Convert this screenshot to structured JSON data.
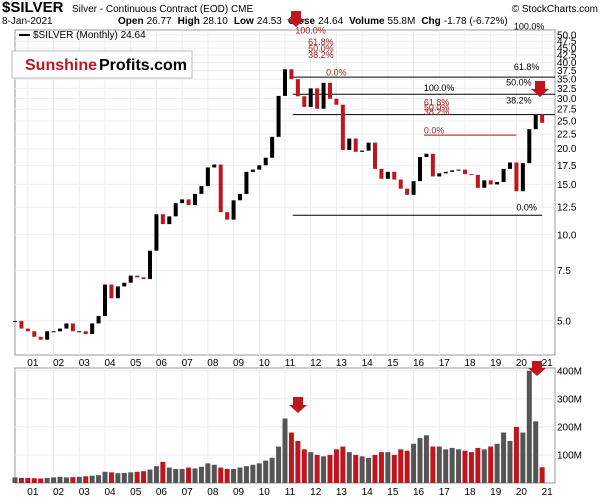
{
  "chart_data": [
    {
      "type": "candlestick",
      "title": "$SILVER",
      "subtitle": "Silver - Continuous Contract (EOD) CME",
      "source": "© StockCharts.com",
      "date": "8-Jan-2021",
      "quote": [
        {
          "label": "Open",
          "value": "26.77"
        },
        {
          "label": "High",
          "value": "28.10"
        },
        {
          "label": "Low",
          "value": "24.53"
        },
        {
          "label": "Close",
          "value": "24.64"
        },
        {
          "label": "Volume",
          "value": "55.8M"
        },
        {
          "label": "Chg",
          "value": "-1.78 (-6.72%)"
        }
      ],
      "legend": "$SILVER (Monthly) 24.64",
      "logo": [
        "Sunshine",
        "Profits.com"
      ],
      "log_scale": true,
      "grid": true,
      "up_color": "#000000",
      "down_color": "#c0141e",
      "x": [
        2000.5,
        2000.75,
        2001,
        2001.25,
        2001.5,
        2001.75,
        2002,
        2002.25,
        2002.5,
        2002.75,
        2003,
        2003.25,
        2003.5,
        2003.75,
        2004,
        2004.25,
        2004.5,
        2004.75,
        2005,
        2005.25,
        2005.5,
        2005.75,
        2006,
        2006.25,
        2006.5,
        2006.75,
        2007,
        2007.25,
        2007.5,
        2007.75,
        2008,
        2008.25,
        2008.5,
        2008.75,
        2009,
        2009.25,
        2009.5,
        2009.75,
        2010,
        2010.25,
        2010.5,
        2010.75,
        2011,
        2011.25,
        2011.5,
        2011.75,
        2012,
        2012.25,
        2012.5,
        2012.75,
        2013,
        2013.25,
        2013.5,
        2013.75,
        2014,
        2014.25,
        2014.5,
        2014.75,
        2015,
        2015.25,
        2015.5,
        2015.75,
        2016,
        2016.25,
        2016.5,
        2016.75,
        2017,
        2017.25,
        2017.5,
        2017.75,
        2018,
        2018.25,
        2018.5,
        2018.75,
        2019,
        2019.25,
        2019.5,
        2019.75,
        2020,
        2020.25,
        2020.5,
        2020.75,
        2021
      ],
      "values": [
        5.0,
        4.7,
        4.6,
        4.4,
        4.3,
        4.6,
        4.6,
        4.7,
        4.9,
        4.6,
        4.6,
        4.5,
        4.9,
        5.2,
        6.7,
        6.0,
        6.6,
        6.8,
        7.2,
        7.1,
        7.0,
        8.8,
        11.8,
        10.9,
        11.6,
        12.9,
        13.3,
        12.7,
        13.9,
        14.8,
        17.2,
        17.6,
        12.0,
        11.3,
        13.2,
        13.9,
        16.6,
        16.9,
        17.5,
        18.6,
        22.0,
        30.6,
        37.9,
        35.0,
        30.5,
        28.0,
        32.5,
        27.6,
        34.0,
        29.9,
        28.5,
        19.8,
        21.7,
        19.5,
        19.7,
        21.0,
        17.0,
        15.7,
        16.6,
        15.6,
        14.5,
        13.8,
        15.4,
        18.7,
        19.2,
        16.0,
        16.4,
        16.6,
        16.8,
        16.9,
        16.3,
        16.2,
        14.6,
        15.5,
        15.0,
        15.3,
        17.0,
        17.9,
        14.2,
        17.8,
        23.4,
        26.3,
        24.64
      ],
      "xlim": [
        2000.5,
        2021.5
      ],
      "xticks": [
        {
          "value": 2001,
          "label": "01"
        },
        {
          "value": 2002,
          "label": "02"
        },
        {
          "value": 2003,
          "label": "03"
        },
        {
          "value": 2004,
          "label": "04"
        },
        {
          "value": 2005,
          "label": "05"
        },
        {
          "value": 2006,
          "label": "06"
        },
        {
          "value": 2007,
          "label": "07"
        },
        {
          "value": 2008,
          "label": "08"
        },
        {
          "value": 2009,
          "label": "09"
        },
        {
          "value": 2010,
          "label": "10"
        },
        {
          "value": 2011,
          "label": "11"
        },
        {
          "value": 2012,
          "label": "12"
        },
        {
          "value": 2013,
          "label": "13"
        },
        {
          "value": 2014,
          "label": "14"
        },
        {
          "value": 2015,
          "label": "15"
        },
        {
          "value": 2016,
          "label": "16"
        },
        {
          "value": 2017,
          "label": "17"
        },
        {
          "value": 2018,
          "label": "18"
        },
        {
          "value": 2019,
          "label": "19"
        },
        {
          "value": 2020,
          "label": "20"
        },
        {
          "value": 2021,
          "label": "21"
        }
      ],
      "ylim": [
        3.8,
        52
      ],
      "yticks": [
        {
          "value": 5,
          "label": "5.0"
        },
        7.5,
        {
          "value": 10,
          "label": "10.0"
        },
        12.5,
        {
          "value": 15,
          "label": "15.0"
        },
        17.5,
        {
          "value": 20,
          "label": "20.0"
        },
        22.5,
        {
          "value": 25,
          "label": "25.0"
        },
        27.5,
        {
          "value": 30,
          "label": "30.0"
        },
        32.5,
        {
          "value": 35,
          "label": "35.0"
        },
        37.5,
        {
          "value": 40,
          "label": "40.0"
        },
        42.5,
        {
          "value": 45,
          "label": "45.0"
        },
        47.5,
        {
          "value": 50,
          "label": "50.0"
        }
      ],
      "reference_lines": [
        {
          "value": 35.6,
          "from": 2011.3,
          "to": 2021.5,
          "color": "#000000"
        },
        {
          "value": 31.0,
          "from": 2011.3,
          "to": 2021.5,
          "color": "#000000"
        },
        {
          "value": 26.3,
          "from": 2011.3,
          "to": 2021.5,
          "color": "#000000"
        },
        {
          "value": 11.7,
          "from": 2011.3,
          "to": 2021.0,
          "color": "#000000"
        },
        {
          "value": 22.3,
          "from": 2016.4,
          "to": 2020.0,
          "color": "#a02020"
        }
      ],
      "annotations": [
        {
          "text": "100.0%",
          "x": 2011.4,
          "y": 50,
          "color": "#a02020"
        },
        {
          "text": "61.8%",
          "x": 2011.9,
          "y": 45.5,
          "color": "#a02020"
        },
        {
          "text": "50.0%",
          "x": 2011.9,
          "y": 43.2,
          "color": "#a02020"
        },
        {
          "text": "38.2%",
          "x": 2011.9,
          "y": 41,
          "color": "#a02020"
        },
        {
          "text": "0.0%",
          "x": 2012.6,
          "y": 35.6,
          "color": "#a02020"
        },
        {
          "text": "100.0%",
          "x": 2019.9,
          "y": 51.5,
          "color": "#000000"
        },
        {
          "text": "61.8%",
          "x": 2019.9,
          "y": 37.3,
          "color": "#000000"
        },
        {
          "text": "50.0%",
          "x": 2019.6,
          "y": 32.8,
          "color": "#000000"
        },
        {
          "text": "100.0%",
          "x": 2016.4,
          "y": 31.5,
          "color": "#000000"
        },
        {
          "text": "38.2%",
          "x": 2019.6,
          "y": 28.4,
          "color": "#000000"
        },
        {
          "text": "61.8%",
          "x": 2016.4,
          "y": 28.0,
          "color": "#a02020"
        },
        {
          "text": "50.0%",
          "x": 2016.4,
          "y": 26.9,
          "color": "#a02020"
        },
        {
          "text": "38.2%",
          "x": 2016.4,
          "y": 25.9,
          "color": "#a02020"
        },
        {
          "text": "0.0%",
          "x": 2016.4,
          "y": 22.3,
          "color": "#a02020"
        },
        {
          "text": "0.0%",
          "x": 2020.0,
          "y": 12.0,
          "color": "#000000"
        }
      ]
    },
    {
      "type": "bar",
      "up_color": "#555555",
      "down_color": "#c0141e",
      "grid": true,
      "values": [
        20,
        18,
        18,
        17,
        16,
        18,
        20,
        22,
        20,
        21,
        22,
        24,
        26,
        28,
        40,
        38,
        35,
        36,
        38,
        40,
        42,
        48,
        60,
        75,
        55,
        50,
        50,
        55,
        52,
        58,
        70,
        65,
        55,
        50,
        50,
        55,
        60,
        65,
        70,
        80,
        90,
        130,
        230,
        180,
        150,
        120,
        110,
        100,
        95,
        100,
        120,
        130,
        110,
        100,
        95,
        90,
        100,
        110,
        110,
        100,
        120,
        115,
        140,
        160,
        170,
        130,
        130,
        120,
        125,
        120,
        115,
        110,
        125,
        120,
        130,
        140,
        180,
        150,
        200,
        180,
        400,
        220,
        56
      ],
      "ylim": [
        0,
        410
      ],
      "yticks": [
        {
          "value": 100,
          "label": "100M"
        },
        {
          "value": 200,
          "label": "200M"
        },
        {
          "value": 300,
          "label": "300M"
        },
        {
          "value": 400,
          "label": "400M"
        }
      ],
      "xticks": [
        {
          "value": 2001,
          "label": "01"
        },
        {
          "value": 2002,
          "label": "02"
        },
        {
          "value": 2003,
          "label": "03"
        },
        {
          "value": 2004,
          "label": "04"
        },
        {
          "value": 2005,
          "label": "05"
        },
        {
          "value": 2006,
          "label": "06"
        },
        {
          "value": 2007,
          "label": "07"
        },
        {
          "value": 2008,
          "label": "08"
        },
        {
          "value": 2009,
          "label": "09"
        },
        {
          "value": 2010,
          "label": "10"
        },
        {
          "value": 2011,
          "label": "11"
        },
        {
          "value": 2012,
          "label": "12"
        },
        {
          "value": 2013,
          "label": "13"
        },
        {
          "value": 2014,
          "label": "14"
        },
        {
          "value": 2015,
          "label": "15"
        },
        {
          "value": 2016,
          "label": "16"
        },
        {
          "value": 2017,
          "label": "17"
        },
        {
          "value": 2018,
          "label": "18"
        },
        {
          "value": 2019,
          "label": "19"
        },
        {
          "value": 2020,
          "label": "20"
        },
        {
          "value": 2021,
          "label": "21"
        }
      ]
    }
  ]
}
